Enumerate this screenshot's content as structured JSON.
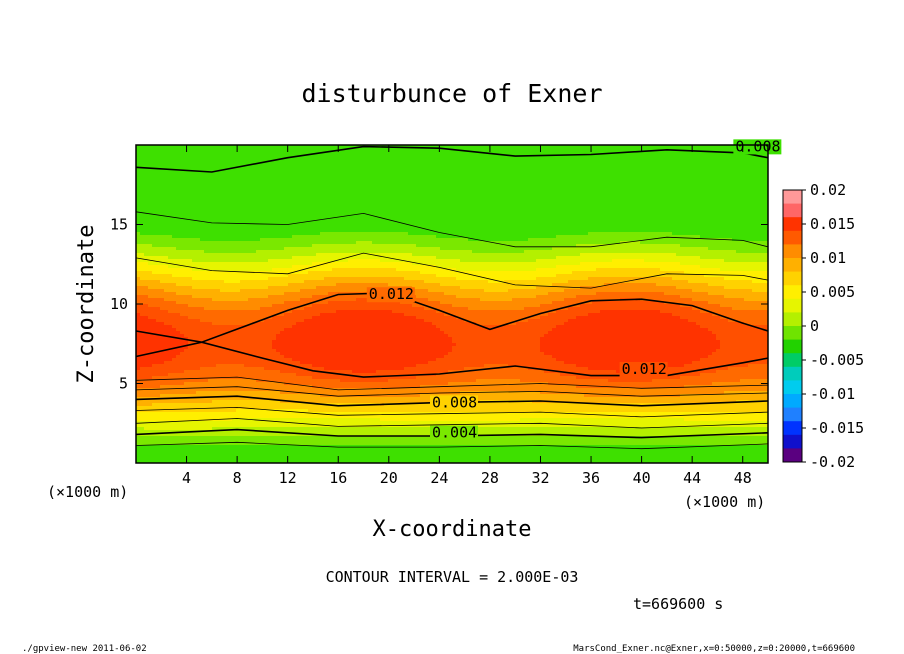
{
  "chart_data": {
    "type": "contour",
    "title": "disturbunce of Exner",
    "xlabel": "X-coordinate",
    "ylabel": "Z-coordinate",
    "x_unit": "(×1000 m)",
    "xlim": [
      0,
      50
    ],
    "ylim": [
      0,
      20
    ],
    "x_ticks": [
      4,
      8,
      12,
      16,
      20,
      24,
      28,
      32,
      36,
      40,
      44,
      48
    ],
    "y_ticks": [
      5,
      10,
      15
    ],
    "contour_interval": "CONTOUR INTERVAL = 2.000E-03",
    "time": "t=669600 s",
    "contour_labels": [
      "0.008",
      "0.012",
      "0.012",
      "0.008",
      "0.004"
    ],
    "colorbar": {
      "ticks": [
        "0.02",
        "0.015",
        "0.01",
        "0.005",
        "0",
        "-0.005",
        "-0.01",
        "-0.015",
        "-0.02"
      ],
      "colors": [
        "#ff9999",
        "#ff6666",
        "#ff3300",
        "#ff5a00",
        "#ff8c00",
        "#ffb000",
        "#ffd200",
        "#ffef00",
        "#e6f500",
        "#b4f000",
        "#6fe400",
        "#22d200",
        "#00cc66",
        "#00ccbb",
        "#00ccee",
        "#00aaff",
        "#1f80ff",
        "#0033ff",
        "#1010cc",
        "#5a0080"
      ],
      "range": [
        -0.02,
        0.02
      ]
    },
    "band_colors": [
      "#3ee000",
      "#7ae800",
      "#b4f000",
      "#e6f500",
      "#ffef00",
      "#ffd200",
      "#ffb000",
      "#ff8c00",
      "#ff6a00",
      "#ff5000",
      "#ff3300"
    ]
  },
  "footer": {
    "left": "./gpview-new   2011-06-02",
    "right": "MarsCond_Exner.nc@Exner,x=0:50000,z=0:20000,t=669600"
  }
}
